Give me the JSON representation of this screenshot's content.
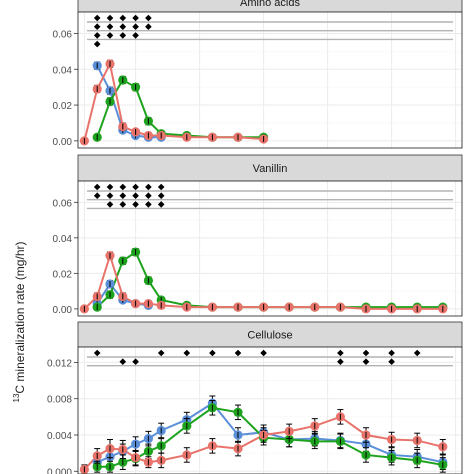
{
  "y_axis_label": "13C mineralization rate (mg/hr)",
  "y_axis_label_sup": "13",
  "y_axis_label_rest": "C mineralization rate (mg/hr)",
  "colors": {
    "red": "#e8736b",
    "blue": "#5b8fd9",
    "green": "#1ea31e",
    "panel_bg": "#ffffff",
    "strip_bg": "#d9d9d9",
    "grid": "#ebebeb",
    "sig_line": "#b3b3b3"
  },
  "chart_data": [
    {
      "type": "line",
      "title": "Amino acids",
      "x": [
        1,
        2,
        3,
        4,
        5,
        6,
        7,
        9,
        11,
        13,
        15
      ],
      "ylim": [
        -0.004,
        0.072
      ],
      "yticks": [
        0.0,
        0.02,
        0.04,
        0.06
      ],
      "ytick_labels": [
        "0.00",
        "0.02",
        "0.04",
        "0.06"
      ],
      "grid": true,
      "series": [
        {
          "color": "red",
          "values": [
            0.0,
            0.029,
            0.043,
            0.008,
            0.005,
            0.003,
            0.003,
            0.002,
            0.002,
            0.002,
            0.001
          ],
          "errors": [
            0.001,
            0.002,
            0.002,
            0.002,
            0.001,
            0.001,
            0.001,
            0.001,
            0.001,
            0.001,
            0.001
          ]
        },
        {
          "color": "blue",
          "values": [
            null,
            0.042,
            0.028,
            0.006,
            0.003,
            0.002,
            0.002,
            null,
            null,
            null,
            null
          ],
          "errors": [
            0,
            0.002,
            0.002,
            0.001,
            0.001,
            0.001,
            0.001,
            0,
            0,
            0,
            0
          ]
        },
        {
          "color": "green",
          "values": [
            null,
            0.002,
            0.022,
            0.034,
            0.03,
            0.011,
            0.004,
            0.003,
            0.002,
            0.002,
            0.002
          ],
          "errors": [
            0,
            0.001,
            0.002,
            0.002,
            0.002,
            0.002,
            0.001,
            0.001,
            0.001,
            0.001,
            0.001
          ]
        }
      ],
      "significance": [
        {
          "row": 0,
          "x": [
            2,
            3,
            4,
            5,
            6
          ]
        },
        {
          "row": 1,
          "x": [
            2,
            3,
            4,
            5,
            6
          ]
        },
        {
          "row": 2,
          "x": [
            2,
            3,
            4,
            5
          ]
        },
        {
          "row": 3,
          "x": [
            2
          ]
        }
      ]
    },
    {
      "type": "line",
      "title": "Vanillin",
      "x": [
        1,
        2,
        3,
        4,
        5,
        6,
        7,
        9,
        11,
        13,
        15,
        17,
        19,
        21,
        23,
        25,
        27,
        29
      ],
      "ylim": [
        -0.004,
        0.072
      ],
      "yticks": [
        0.0,
        0.02,
        0.04,
        0.06
      ],
      "ytick_labels": [
        "0.00",
        "0.02",
        "0.04",
        "0.06"
      ],
      "grid": true,
      "series": [
        {
          "color": "red",
          "values": [
            0.0,
            0.007,
            0.03,
            0.007,
            0.003,
            0.003,
            0.002,
            0.001,
            0.001,
            0.001,
            0.001,
            0.001,
            0.001,
            0.001,
            0.0,
            0.0,
            0.0,
            0.0
          ],
          "errors": [
            0.001,
            0.002,
            0.002,
            0.002,
            0.001,
            0.001,
            0.001,
            0.001,
            0.001,
            0.001,
            0.001,
            0.001,
            0.001,
            0.001,
            0.001,
            0.001,
            0.001,
            0.001
          ]
        },
        {
          "color": "blue",
          "values": [
            null,
            0.003,
            0.014,
            0.005,
            0.003,
            0.002,
            null,
            null,
            null,
            null,
            null,
            null,
            null,
            null,
            null,
            null,
            null,
            null
          ],
          "errors": [
            0,
            0.001,
            0.002,
            0.001,
            0.001,
            0.001,
            0,
            0,
            0,
            0,
            0,
            0,
            0,
            0,
            0,
            0,
            0,
            0
          ]
        },
        {
          "color": "green",
          "values": [
            null,
            0.001,
            0.008,
            0.027,
            0.032,
            0.016,
            0.005,
            0.002,
            0.001,
            0.001,
            0.001,
            0.001,
            0.001,
            0.001,
            0.001,
            0.001,
            0.001,
            0.001
          ],
          "errors": [
            0,
            0.001,
            0.002,
            0.002,
            0.002,
            0.002,
            0.001,
            0.001,
            0.001,
            0.001,
            0.001,
            0.001,
            0.001,
            0.001,
            0.001,
            0.001,
            0.001,
            0.001
          ]
        }
      ],
      "significance": [
        {
          "row": 0,
          "x": [
            2,
            3,
            4,
            5,
            6,
            7
          ]
        },
        {
          "row": 1,
          "x": [
            2,
            3,
            4,
            5,
            6,
            7
          ]
        },
        {
          "row": 2,
          "x": [
            3,
            4,
            5,
            6,
            7
          ]
        }
      ]
    },
    {
      "type": "line",
      "title": "Cellulose",
      "x": [
        1,
        2,
        3,
        4,
        5,
        6,
        7,
        9,
        11,
        13,
        15,
        17,
        19,
        21,
        23,
        25,
        27,
        29
      ],
      "ylim": [
        -0.0003,
        0.0137
      ],
      "yticks": [
        0.0,
        0.004,
        0.008,
        0.012
      ],
      "ytick_labels": [
        "0.000",
        "0.004",
        "0.008",
        "0.012"
      ],
      "grid": true,
      "series": [
        {
          "color": "red",
          "values": [
            0.0002,
            0.0017,
            0.0025,
            0.0024,
            0.0015,
            0.001,
            0.0012,
            0.0018,
            0.0028,
            0.0025,
            0.004,
            0.0044,
            0.005,
            0.006,
            0.004,
            0.0035,
            0.0034,
            0.0027
          ],
          "errors": [
            0.0005,
            0.0008,
            0.001,
            0.001,
            0.0008,
            0.0006,
            0.0008,
            0.0008,
            0.0008,
            0.0008,
            0.0008,
            0.0008,
            0.0008,
            0.0008,
            0.0008,
            0.0008,
            0.0008,
            0.0008
          ]
        },
        {
          "color": "blue",
          "values": [
            null,
            0.001,
            0.0016,
            0.0022,
            0.003,
            0.0036,
            0.0045,
            0.0057,
            0.0075,
            0.004,
            0.0043,
            0.0035,
            0.0036,
            0.0034,
            0.003,
            0.0018,
            0.0016,
            0.001
          ],
          "errors": [
            0,
            0.0008,
            0.0008,
            0.0008,
            0.0008,
            0.0008,
            0.0008,
            0.0008,
            0.0008,
            0.0008,
            0.0008,
            0.0008,
            0.0008,
            0.0008,
            0.0008,
            0.0008,
            0.0008,
            0.0008
          ]
        },
        {
          "color": "green",
          "values": [
            null,
            0.0005,
            0.0005,
            0.001,
            0.0014,
            0.0022,
            0.0028,
            0.005,
            0.007,
            0.0065,
            0.0037,
            0.0035,
            0.0033,
            0.0033,
            0.0018,
            0.0015,
            0.0012,
            0.0007
          ],
          "errors": [
            0,
            0.0006,
            0.0006,
            0.0008,
            0.0008,
            0.0008,
            0.0008,
            0.0008,
            0.0008,
            0.0008,
            0.0008,
            0.0008,
            0.0008,
            0.0008,
            0.0008,
            0.0008,
            0.0008,
            0.0008
          ]
        }
      ],
      "significance": [
        {
          "row": 0,
          "x": [
            2,
            7,
            9,
            11,
            13,
            15,
            21,
            23,
            25,
            27
          ]
        },
        {
          "row": 1,
          "x": [
            4,
            5,
            21,
            23,
            25
          ]
        }
      ]
    }
  ]
}
